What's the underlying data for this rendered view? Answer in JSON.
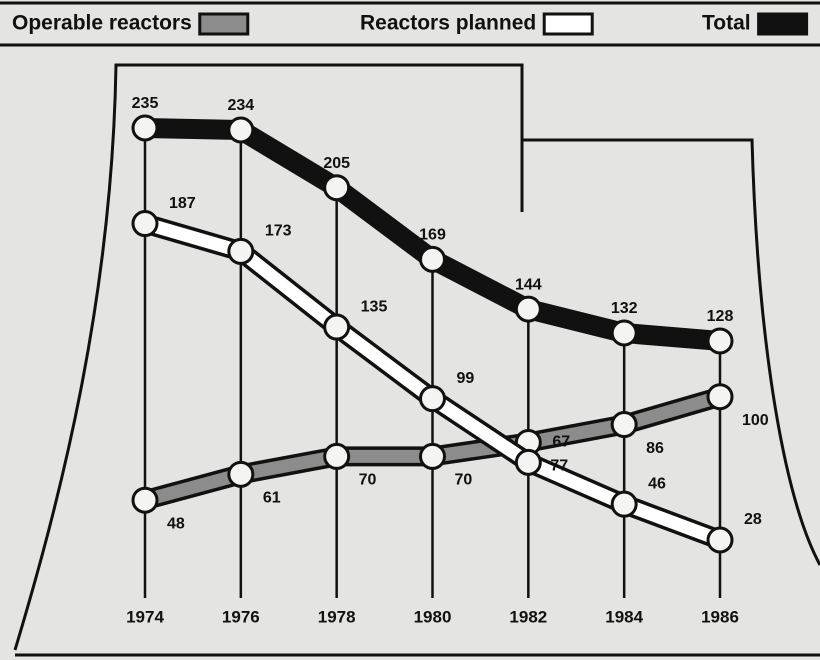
{
  "chart_data": {
    "type": "line",
    "categories": [
      "1974",
      "1976",
      "1978",
      "1980",
      "1982",
      "1984",
      "1986"
    ],
    "series": [
      {
        "name": "Operable reactors",
        "color": "#8c8c8c",
        "values": [
          48,
          61,
          70,
          70,
          77,
          86,
          100
        ]
      },
      {
        "name": "Reactors planned",
        "color": "#ffffff",
        "values": [
          187,
          173,
          135,
          99,
          67,
          46,
          28
        ]
      },
      {
        "name": "Total",
        "color": "#111111",
        "values": [
          235,
          234,
          205,
          169,
          144,
          132,
          128
        ]
      }
    ]
  }
}
